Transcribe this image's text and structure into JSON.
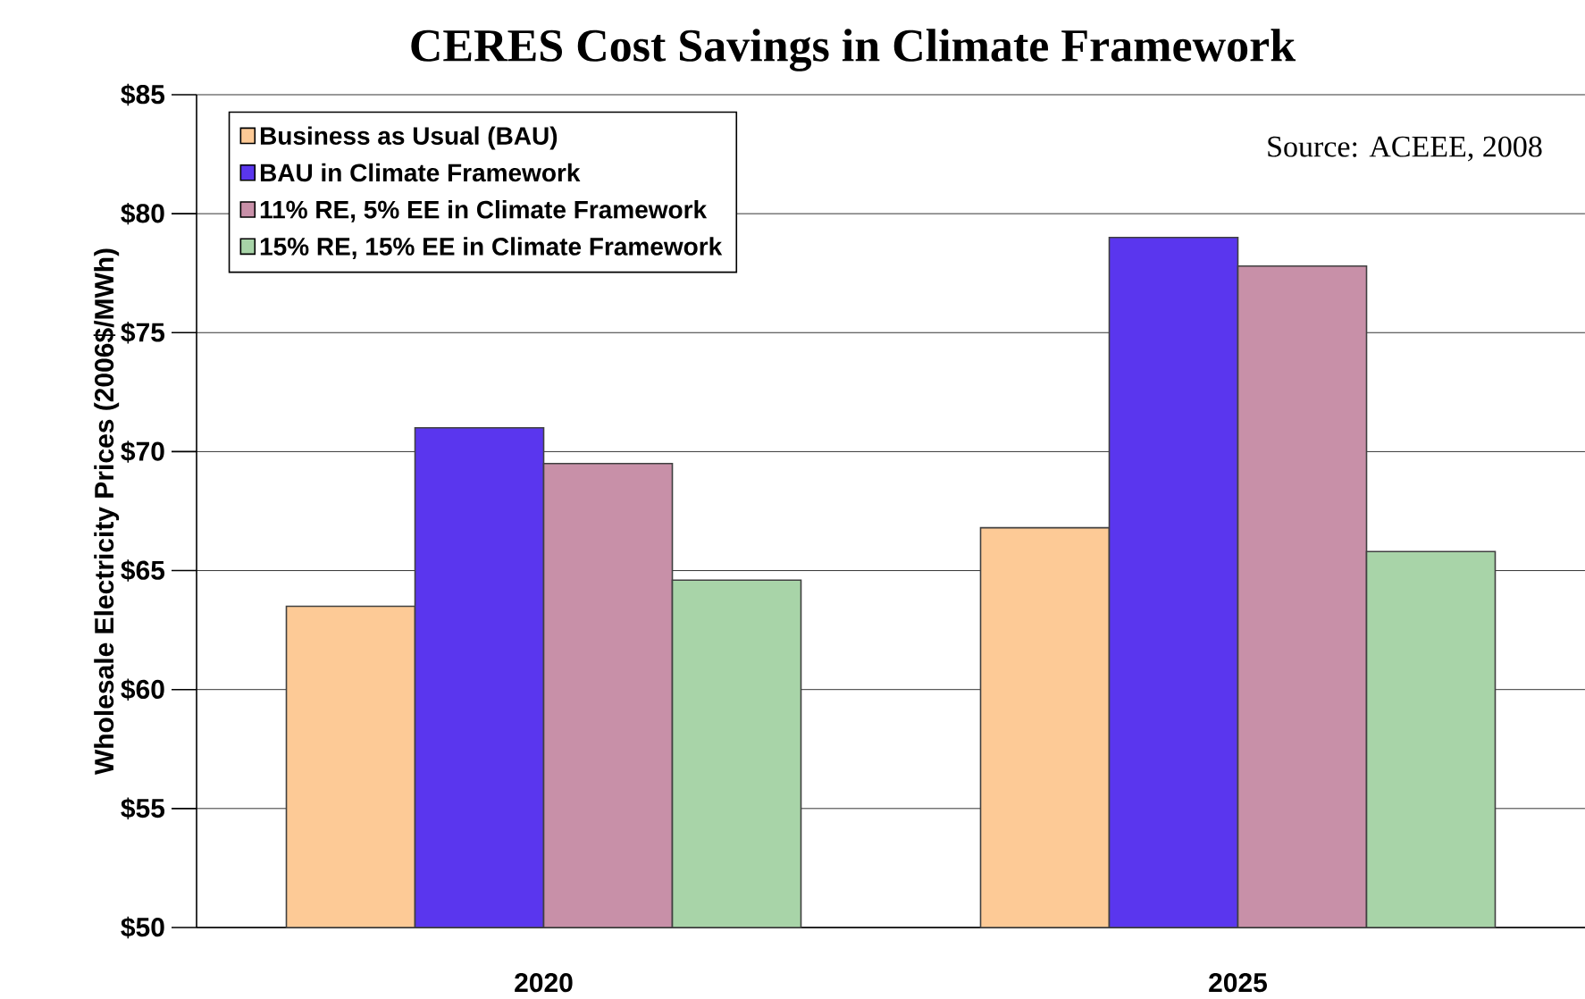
{
  "chart_data": {
    "type": "bar",
    "title": "CERES Cost Savings in Climate Framework",
    "ylabel": "Wholesale Electricity Prices (2006$/MWh)",
    "categories": [
      "2020",
      "2025"
    ],
    "series": [
      {
        "name": "Business as Usual (BAU)",
        "color": "#fdca96",
        "values": [
          63.5,
          66.8
        ]
      },
      {
        "name": "BAU in Climate Framework",
        "color": "#5a36ee",
        "values": [
          71.0,
          79.0
        ]
      },
      {
        "name": "11% RE, 5% EE in Climate Framework",
        "color": "#c890a8",
        "values": [
          69.5,
          77.8
        ]
      },
      {
        "name": "15% RE, 15% EE in Climate Framework",
        "color": "#a8d4a8",
        "values": [
          64.6,
          65.8
        ]
      }
    ],
    "ylim": [
      50,
      85
    ],
    "yticks": [
      {
        "value": 50,
        "label": "$50"
      },
      {
        "value": 55,
        "label": "$55"
      },
      {
        "value": 60,
        "label": "$60"
      },
      {
        "value": 65,
        "label": "$65"
      },
      {
        "value": 70,
        "label": "$70"
      },
      {
        "value": 75,
        "label": "$75"
      },
      {
        "value": 80,
        "label": "$80"
      },
      {
        "value": 85,
        "label": "$85"
      }
    ],
    "grid": "y",
    "legend": "top left",
    "annotations": [
      "Source: ACEEE, 2008"
    ]
  }
}
